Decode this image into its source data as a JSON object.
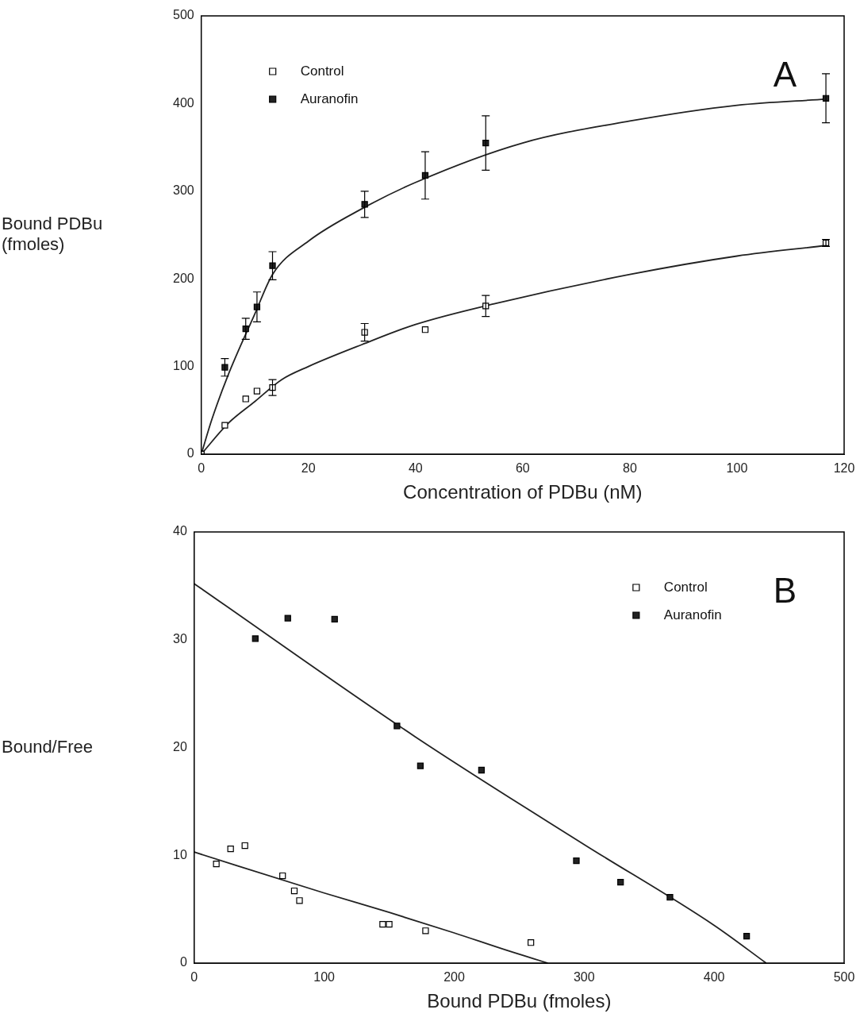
{
  "chart_data": [
    {
      "type": "scatter",
      "xlabel": "Concentration of PDBu (nM)",
      "ylabel": "Bound PDBu\n(fmoles)",
      "annotations": [
        "A"
      ],
      "xlim": [
        0,
        120
      ],
      "xticks": [
        0,
        20,
        40,
        60,
        80,
        100,
        120
      ],
      "ylim": [
        0,
        500
      ],
      "yticks": [
        0,
        100,
        200,
        300,
        400,
        500
      ],
      "legend": "top left",
      "grid": false,
      "series": [
        {
          "name": "Control",
          "color": "#ffffff",
          "marker": "square",
          "x": [
            0,
            4.4,
            8.3,
            10.4,
            13.3,
            30.5,
            41.8,
            53.1,
            116.6
          ],
          "values": [
            0,
            33,
            63,
            72,
            76,
            139,
            142,
            169,
            241
          ],
          "errors": [
            null,
            null,
            null,
            null,
            9,
            10,
            null,
            12,
            4
          ]
        },
        {
          "name": "Auranofin",
          "color": "#222222",
          "marker": "square",
          "x": [
            0,
            4.4,
            8.3,
            10.4,
            13.3,
            30.5,
            41.8,
            53.1,
            116.6
          ],
          "values": [
            0,
            99,
            143,
            168,
            215,
            285,
            318,
            355,
            406
          ],
          "errors": [
            null,
            10,
            12,
            17,
            16,
            15,
            27,
            31,
            28
          ]
        },
        {
          "type": "line",
          "color": "#222222",
          "marker": "none",
          "x": [
            0,
            5,
            10,
            15,
            20,
            30,
            40,
            55,
            80,
            100,
            116.6
          ],
          "values": [
            0,
            35,
            60,
            85,
            100,
            125,
            148,
            172,
            205,
            226,
            238
          ]
        },
        {
          "type": "line",
          "color": "#222222",
          "marker": "none",
          "x": [
            0,
            2,
            5,
            10,
            13.3,
            20,
            30,
            40,
            60,
            80,
            100,
            116.6
          ],
          "values": [
            0,
            40,
            90,
            160,
            205,
            243,
            280,
            310,
            355,
            380,
            398,
            405
          ]
        }
      ]
    },
    {
      "type": "scatter",
      "xlabel": "Bound PDBu (fmoles)",
      "ylabel": "Bound/Free",
      "annotations": [
        "B"
      ],
      "xlim": [
        0,
        500
      ],
      "xticks": [
        0,
        100,
        200,
        300,
        400,
        500
      ],
      "ylim": [
        0,
        40
      ],
      "yticks": [
        0,
        10,
        20,
        30,
        40
      ],
      "legend": "top right",
      "grid": false,
      "series": [
        {
          "name": "Control",
          "color": "#ffffff",
          "marker": "square",
          "x": [
            17,
            28,
            39,
            68,
            77,
            81,
            145,
            150,
            178,
            259
          ],
          "values": [
            9.2,
            10.6,
            10.9,
            8.1,
            6.7,
            5.8,
            3.6,
            3.6,
            3.0,
            1.9
          ]
        },
        {
          "name": "Auranofin",
          "color": "#222222",
          "marker": "square",
          "x": [
            47,
            72,
            108,
            156,
            174,
            221,
            294,
            328,
            366,
            425
          ],
          "values": [
            30.1,
            32.0,
            31.9,
            22.0,
            18.3,
            17.9,
            9.5,
            7.5,
            6.1,
            2.5
          ]
        },
        {
          "type": "line",
          "color": "#222222",
          "marker": "none",
          "x": [
            0,
            100,
            150,
            200,
            240,
            272
          ],
          "values": [
            10.3,
            6.5,
            4.7,
            2.8,
            1.2,
            0
          ]
        },
        {
          "type": "line",
          "color": "#222222",
          "marker": "none",
          "x": [
            0,
            170,
            300,
            400,
            440
          ],
          "values": [
            35.2,
            21,
            11,
            3.5,
            0
          ]
        }
      ]
    }
  ]
}
